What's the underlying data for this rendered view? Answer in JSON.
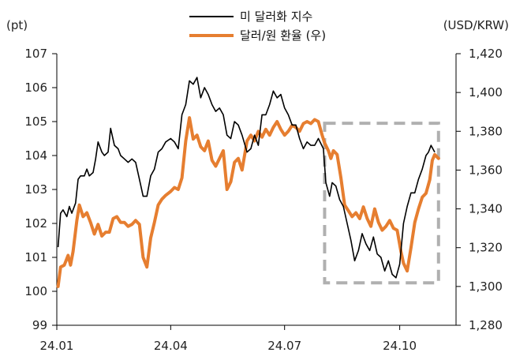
{
  "chart_data": {
    "type": "line",
    "legend": {
      "placement": "top-center"
    },
    "grid": false,
    "x_ticks": [
      "24.01",
      "24.04",
      "24.07",
      "24.10"
    ],
    "y_left": {
      "unit": "(pt)",
      "range": [
        99,
        107
      ],
      "ticks": [
        "99",
        "100",
        "101",
        "102",
        "103",
        "104",
        "105",
        "106",
        "107"
      ]
    },
    "y_right": {
      "unit": "(USD/KRW)",
      "range": [
        1280,
        1420
      ],
      "ticks": [
        "1,280",
        "1,300",
        "1,320",
        "1,340",
        "1,360",
        "1,380",
        "1,400",
        "1,420"
      ]
    },
    "highlight_box": {
      "x_start": "2024-08-02",
      "x_end": "2024-11-01",
      "y_left_range": [
        100.25,
        104.95
      ],
      "style": "dashed",
      "color": "#B0B0B0"
    },
    "series": [
      {
        "name": "미 달러화 지수",
        "axis": "left",
        "color": "#000000",
        "points": [
          [
            "2024-01-02",
            101.3
          ],
          [
            "2024-01-04",
            102.3
          ],
          [
            "2024-01-06",
            102.4
          ],
          [
            "2024-01-09",
            102.2
          ],
          [
            "2024-01-11",
            102.5
          ],
          [
            "2024-01-13",
            102.3
          ],
          [
            "2024-01-16",
            102.6
          ],
          [
            "2024-01-18",
            103.3
          ],
          [
            "2024-01-20",
            103.4
          ],
          [
            "2024-01-23",
            103.4
          ],
          [
            "2024-01-25",
            103.6
          ],
          [
            "2024-01-27",
            103.4
          ],
          [
            "2024-01-30",
            103.5
          ],
          [
            "2024-02-01",
            103.9
          ],
          [
            "2024-02-03",
            104.4
          ],
          [
            "2024-02-06",
            104.1
          ],
          [
            "2024-02-08",
            104.0
          ],
          [
            "2024-02-11",
            104.1
          ],
          [
            "2024-02-13",
            104.8
          ],
          [
            "2024-02-16",
            104.3
          ],
          [
            "2024-02-19",
            104.2
          ],
          [
            "2024-02-21",
            104.0
          ],
          [
            "2024-02-24",
            103.9
          ],
          [
            "2024-02-27",
            103.8
          ],
          [
            "2024-03-01",
            103.9
          ],
          [
            "2024-03-04",
            103.8
          ],
          [
            "2024-03-07",
            103.3
          ],
          [
            "2024-03-10",
            102.8
          ],
          [
            "2024-03-13",
            102.8
          ],
          [
            "2024-03-16",
            103.4
          ],
          [
            "2024-03-19",
            103.6
          ],
          [
            "2024-03-22",
            104.1
          ],
          [
            "2024-03-25",
            104.2
          ],
          [
            "2024-03-28",
            104.4
          ],
          [
            "2024-04-01",
            104.5
          ],
          [
            "2024-04-04",
            104.4
          ],
          [
            "2024-04-07",
            104.2
          ],
          [
            "2024-04-10",
            105.2
          ],
          [
            "2024-04-13",
            105.5
          ],
          [
            "2024-04-16",
            106.2
          ],
          [
            "2024-04-19",
            106.1
          ],
          [
            "2024-04-22",
            106.3
          ],
          [
            "2024-04-25",
            105.7
          ],
          [
            "2024-04-28",
            106.0
          ],
          [
            "2024-05-01",
            105.8
          ],
          [
            "2024-05-04",
            105.5
          ],
          [
            "2024-05-07",
            105.3
          ],
          [
            "2024-05-10",
            105.4
          ],
          [
            "2024-05-13",
            105.2
          ],
          [
            "2024-05-16",
            104.6
          ],
          [
            "2024-05-19",
            104.5
          ],
          [
            "2024-05-22",
            105.0
          ],
          [
            "2024-05-25",
            104.9
          ],
          [
            "2024-05-28",
            104.6
          ],
          [
            "2024-06-01",
            104.1
          ],
          [
            "2024-06-04",
            104.2
          ],
          [
            "2024-06-07",
            104.6
          ],
          [
            "2024-06-10",
            104.3
          ],
          [
            "2024-06-13",
            105.2
          ],
          [
            "2024-06-16",
            105.2
          ],
          [
            "2024-06-19",
            105.5
          ],
          [
            "2024-06-22",
            105.9
          ],
          [
            "2024-06-25",
            105.7
          ],
          [
            "2024-06-28",
            105.8
          ],
          [
            "2024-07-01",
            105.4
          ],
          [
            "2024-07-04",
            105.2
          ],
          [
            "2024-07-07",
            104.9
          ],
          [
            "2024-07-10",
            104.9
          ],
          [
            "2024-07-13",
            104.5
          ],
          [
            "2024-07-16",
            104.2
          ],
          [
            "2024-07-19",
            104.4
          ],
          [
            "2024-07-22",
            104.3
          ],
          [
            "2024-07-25",
            104.3
          ],
          [
            "2024-07-28",
            104.5
          ],
          [
            "2024-08-01",
            104.2
          ],
          [
            "2024-08-03",
            103.2
          ],
          [
            "2024-08-06",
            102.8
          ],
          [
            "2024-08-08",
            103.2
          ],
          [
            "2024-08-11",
            103.1
          ],
          [
            "2024-08-14",
            102.7
          ],
          [
            "2024-08-17",
            102.5
          ],
          [
            "2024-08-20",
            102.0
          ],
          [
            "2024-08-23",
            101.5
          ],
          [
            "2024-08-26",
            100.9
          ],
          [
            "2024-08-29",
            101.2
          ],
          [
            "2024-09-01",
            101.7
          ],
          [
            "2024-09-04",
            101.4
          ],
          [
            "2024-09-07",
            101.2
          ],
          [
            "2024-09-10",
            101.6
          ],
          [
            "2024-09-13",
            101.1
          ],
          [
            "2024-09-16",
            101.0
          ],
          [
            "2024-09-19",
            100.6
          ],
          [
            "2024-09-22",
            100.9
          ],
          [
            "2024-09-25",
            100.5
          ],
          [
            "2024-09-28",
            100.4
          ],
          [
            "2024-10-01",
            100.8
          ],
          [
            "2024-10-04",
            102.0
          ],
          [
            "2024-10-07",
            102.5
          ],
          [
            "2024-10-10",
            102.9
          ],
          [
            "2024-10-13",
            102.9
          ],
          [
            "2024-10-16",
            103.3
          ],
          [
            "2024-10-19",
            103.6
          ],
          [
            "2024-10-22",
            104.0
          ],
          [
            "2024-10-24",
            104.1
          ],
          [
            "2024-10-26",
            104.3
          ],
          [
            "2024-10-29",
            104.1
          ]
        ]
      },
      {
        "name": "달러/원 환율 (우)",
        "axis": "right",
        "color": "#E67E30",
        "points": [
          [
            "2024-01-02",
            1300
          ],
          [
            "2024-01-04",
            1310
          ],
          [
            "2024-01-07",
            1311
          ],
          [
            "2024-01-10",
            1316
          ],
          [
            "2024-01-12",
            1311
          ],
          [
            "2024-01-14",
            1318
          ],
          [
            "2024-01-17",
            1334
          ],
          [
            "2024-01-19",
            1342
          ],
          [
            "2024-01-22",
            1336
          ],
          [
            "2024-01-25",
            1338
          ],
          [
            "2024-01-28",
            1333
          ],
          [
            "2024-01-31",
            1327
          ],
          [
            "2024-02-03",
            1332
          ],
          [
            "2024-02-06",
            1326
          ],
          [
            "2024-02-09",
            1328
          ],
          [
            "2024-02-12",
            1328
          ],
          [
            "2024-02-15",
            1335
          ],
          [
            "2024-02-18",
            1336
          ],
          [
            "2024-02-21",
            1333
          ],
          [
            "2024-02-24",
            1333
          ],
          [
            "2024-02-27",
            1331
          ],
          [
            "2024-03-01",
            1332
          ],
          [
            "2024-03-04",
            1334
          ],
          [
            "2024-03-07",
            1332
          ],
          [
            "2024-03-10",
            1315
          ],
          [
            "2024-03-13",
            1310
          ],
          [
            "2024-03-16",
            1325
          ],
          [
            "2024-03-19",
            1333
          ],
          [
            "2024-03-22",
            1342
          ],
          [
            "2024-03-25",
            1345
          ],
          [
            "2024-03-28",
            1347
          ],
          [
            "2024-04-01",
            1349
          ],
          [
            "2024-04-04",
            1351
          ],
          [
            "2024-04-07",
            1350
          ],
          [
            "2024-04-10",
            1356
          ],
          [
            "2024-04-13",
            1375
          ],
          [
            "2024-04-16",
            1387
          ],
          [
            "2024-04-19",
            1376
          ],
          [
            "2024-04-22",
            1378
          ],
          [
            "2024-04-25",
            1372
          ],
          [
            "2024-04-28",
            1370
          ],
          [
            "2024-05-01",
            1375
          ],
          [
            "2024-05-04",
            1365
          ],
          [
            "2024-05-07",
            1362
          ],
          [
            "2024-05-10",
            1366
          ],
          [
            "2024-05-13",
            1370
          ],
          [
            "2024-05-16",
            1350
          ],
          [
            "2024-05-19",
            1354
          ],
          [
            "2024-05-22",
            1364
          ],
          [
            "2024-05-25",
            1366
          ],
          [
            "2024-05-28",
            1360
          ],
          [
            "2024-06-01",
            1375
          ],
          [
            "2024-06-04",
            1378
          ],
          [
            "2024-06-07",
            1375
          ],
          [
            "2024-06-10",
            1380
          ],
          [
            "2024-06-13",
            1377
          ],
          [
            "2024-06-16",
            1381
          ],
          [
            "2024-06-19",
            1378
          ],
          [
            "2024-06-22",
            1382
          ],
          [
            "2024-06-25",
            1385
          ],
          [
            "2024-06-28",
            1381
          ],
          [
            "2024-07-01",
            1378
          ],
          [
            "2024-07-04",
            1380
          ],
          [
            "2024-07-07",
            1383
          ],
          [
            "2024-07-10",
            1382
          ],
          [
            "2024-07-13",
            1380
          ],
          [
            "2024-07-16",
            1384
          ],
          [
            "2024-07-19",
            1385
          ],
          [
            "2024-07-22",
            1384
          ],
          [
            "2024-07-25",
            1386
          ],
          [
            "2024-07-28",
            1385
          ],
          [
            "2024-07-31",
            1378
          ],
          [
            "2024-08-02",
            1374
          ],
          [
            "2024-08-05",
            1370
          ],
          [
            "2024-08-07",
            1366
          ],
          [
            "2024-08-09",
            1370
          ],
          [
            "2024-08-12",
            1368
          ],
          [
            "2024-08-15",
            1356
          ],
          [
            "2024-08-18",
            1342
          ],
          [
            "2024-08-21",
            1339
          ],
          [
            "2024-08-24",
            1336
          ],
          [
            "2024-08-27",
            1338
          ],
          [
            "2024-08-30",
            1335
          ],
          [
            "2024-09-02",
            1341
          ],
          [
            "2024-09-05",
            1335
          ],
          [
            "2024-09-08",
            1331
          ],
          [
            "2024-09-11",
            1340
          ],
          [
            "2024-09-14",
            1333
          ],
          [
            "2024-09-17",
            1329
          ],
          [
            "2024-09-20",
            1331
          ],
          [
            "2024-09-23",
            1334
          ],
          [
            "2024-09-26",
            1330
          ],
          [
            "2024-09-29",
            1329
          ],
          [
            "2024-10-02",
            1318
          ],
          [
            "2024-10-04",
            1312
          ],
          [
            "2024-10-07",
            1308
          ],
          [
            "2024-10-10",
            1320
          ],
          [
            "2024-10-13",
            1333
          ],
          [
            "2024-10-16",
            1340
          ],
          [
            "2024-10-19",
            1346
          ],
          [
            "2024-10-22",
            1348
          ],
          [
            "2024-10-25",
            1355
          ],
          [
            "2024-10-27",
            1365
          ],
          [
            "2024-10-29",
            1368
          ],
          [
            "2024-11-01",
            1366
          ]
        ]
      }
    ]
  }
}
